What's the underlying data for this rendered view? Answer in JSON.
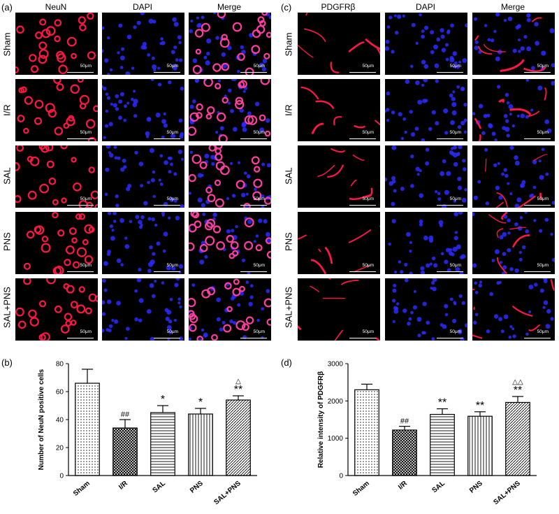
{
  "panels": {
    "a": {
      "letter": "(a)",
      "columns": [
        "NeuN",
        "DAPI",
        "Merge"
      ],
      "rows": [
        "Sham",
        "I/R",
        "SAL",
        "PNS",
        "SAL+PNS"
      ],
      "scale_label": "50μm"
    },
    "c": {
      "letter": "(c)",
      "columns": [
        "PDGFRβ",
        "DAPI",
        "Merge"
      ],
      "rows": [
        "Sham",
        "I/R",
        "SAL",
        "PNS",
        "SAL+PNS"
      ],
      "scale_label": "50μm"
    },
    "b": {
      "letter": "(b)"
    },
    "d": {
      "letter": "(d)"
    }
  },
  "colors": {
    "marker_red": "#ff1744",
    "dapi_blue": "#2a2aff",
    "merge_pink": "#ff3fa0"
  },
  "chart_data": [
    {
      "id": "b",
      "type": "bar",
      "ylabel": "Number of NeuN positive cells",
      "categories": [
        "Sham",
        "I/R",
        "SAL",
        "PNS",
        "SAL+PNS"
      ],
      "values": [
        66,
        34,
        45,
        44,
        54
      ],
      "errors": [
        10,
        6,
        5,
        4,
        3
      ],
      "ylim": [
        0,
        80
      ],
      "yticks": [
        "0",
        "20",
        "40",
        "60",
        "80"
      ],
      "ytick_values": [
        0,
        20,
        40,
        60,
        80
      ],
      "annotations": [
        "",
        "##",
        "*",
        "*",
        "**"
      ],
      "annotations_top": [
        "",
        "",
        "",
        "",
        "△"
      ],
      "patterns": [
        "dots",
        "crosshatch",
        "hlines",
        "vlines",
        "diag"
      ]
    },
    {
      "id": "d",
      "type": "bar",
      "ylabel": "Relative intensity of PDGFRβ",
      "categories": [
        "Sham",
        "I/R",
        "SAL",
        "PNS",
        "SAL+PNS"
      ],
      "values": [
        2300,
        1220,
        1640,
        1590,
        1960
      ],
      "errors": [
        150,
        100,
        150,
        120,
        160
      ],
      "ylim": [
        0,
        3000
      ],
      "yticks": [
        "0",
        "1000",
        "2000",
        "3000"
      ],
      "ytick_values": [
        0,
        1000,
        2000,
        3000
      ],
      "annotations": [
        "",
        "##",
        "**",
        "**",
        "**"
      ],
      "annotations_top": [
        "",
        "",
        "",
        "",
        "△△"
      ],
      "patterns": [
        "dots",
        "crosshatch",
        "hlines",
        "vlines",
        "diag"
      ]
    }
  ]
}
